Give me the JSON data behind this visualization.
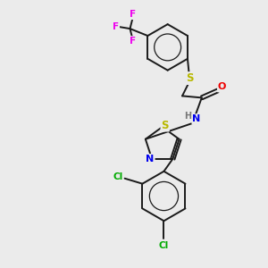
{
  "bg_color": "#ebebeb",
  "bond_color": "#1a1a1a",
  "atom_colors": {
    "S": "#b8b800",
    "N": "#0000ee",
    "O": "#ee0000",
    "F": "#ee00ee",
    "Cl": "#00aa00",
    "C": "#1a1a1a",
    "H": "#777777"
  },
  "figsize": [
    3.0,
    3.0
  ],
  "dpi": 100,
  "lw": 1.4
}
